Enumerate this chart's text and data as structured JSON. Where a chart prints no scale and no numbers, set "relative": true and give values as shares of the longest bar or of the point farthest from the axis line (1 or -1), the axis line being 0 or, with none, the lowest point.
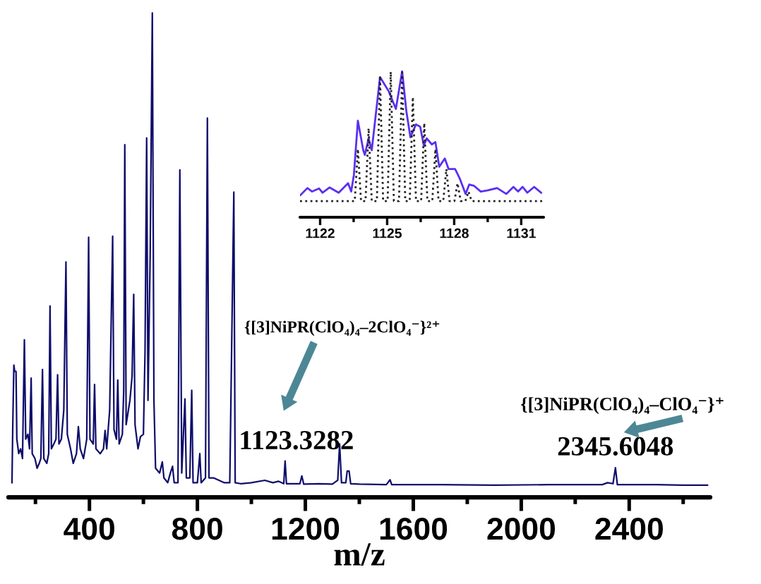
{
  "chart_data": [
    {
      "type": "line",
      "relative": true,
      "color": "#0f0d6b",
      "xlabel": "m/z",
      "xlim": [
        100,
        2700
      ],
      "tick_labels": "x",
      "xticks": [
        {
          "value": 200,
          "label": null
        },
        400,
        {
          "value": 600,
          "label": null
        },
        800,
        {
          "value": 1000,
          "label": null
        },
        1200,
        {
          "value": 1400,
          "label": null
        },
        1600,
        {
          "value": 1800,
          "label": null
        },
        2000,
        {
          "value": 2200,
          "label": null
        },
        2400,
        {
          "value": 2600,
          "label": null
        }
      ],
      "x": [
        113,
        116,
        120,
        123,
        128,
        131,
        138,
        145,
        152,
        159,
        164,
        172,
        178,
        184,
        188,
        198,
        206,
        214,
        220,
        226,
        231,
        242,
        249,
        254,
        259,
        268,
        276,
        282,
        287,
        296,
        305,
        313,
        318,
        330,
        340,
        352,
        359,
        366,
        378,
        390,
        397,
        402,
        414,
        419,
        424,
        440,
        452,
        458,
        464,
        475,
        486,
        491,
        500,
        505,
        510,
        522,
        527,
        531,
        536,
        550,
        558,
        564,
        569,
        580,
        589,
        600,
        606,
        612,
        617,
        625,
        633,
        639,
        645,
        660,
        670,
        676,
        690,
        700,
        708,
        714,
        728,
        735,
        742,
        754,
        759,
        772,
        779,
        784,
        800,
        809,
        814,
        830,
        837,
        843,
        860,
        880,
        900,
        920,
        935,
        940,
        960,
        1000,
        1050,
        1080,
        1100,
        1120,
        1125,
        1130,
        1180,
        1187,
        1194,
        1250,
        1300,
        1320,
        1327,
        1334,
        1350,
        1355,
        1362,
        1368,
        1400,
        1500,
        1514,
        1520,
        1700,
        1900,
        2100,
        2300,
        2320,
        2340,
        2349,
        2356,
        2500,
        2600,
        2690
      ],
      "values": [
        0.03,
        0.15,
        0.273,
        0.26,
        0.26,
        0.12,
        0.09,
        0.1,
        0.08,
        0.325,
        0.12,
        0.13,
        0.1,
        0.246,
        0.09,
        0.08,
        0.06,
        0.07,
        0.08,
        0.264,
        0.08,
        0.07,
        0.09,
        0.395,
        0.1,
        0.11,
        0.12,
        0.253,
        0.11,
        0.12,
        0.18,
        0.486,
        0.13,
        0.1,
        0.07,
        0.09,
        0.146,
        0.1,
        0.08,
        0.12,
        0.537,
        0.12,
        0.11,
        0.233,
        0.1,
        0.09,
        0.1,
        0.138,
        0.1,
        0.18,
        0.539,
        0.14,
        0.12,
        0.242,
        0.11,
        0.13,
        0.22,
        0.728,
        0.15,
        0.2,
        0.25,
        0.419,
        0.15,
        0.1,
        0.125,
        0.13,
        0.3,
        0.742,
        0.2,
        0.5,
        1.0,
        0.2,
        0.06,
        0.05,
        0.073,
        0.04,
        0.03,
        0.05,
        0.064,
        0.03,
        0.03,
        0.676,
        0.05,
        0.203,
        0.04,
        0.04,
        0.221,
        0.03,
        0.03,
        0.09,
        0.03,
        0.04,
        0.783,
        0.04,
        0.04,
        0.035,
        0.03,
        0.03,
        0.63,
        0.03,
        0.028,
        0.03,
        0.035,
        0.03,
        0.033,
        0.028,
        0.075,
        0.028,
        0.028,
        0.044,
        0.027,
        0.028,
        0.027,
        0.035,
        0.11,
        0.03,
        0.03,
        0.054,
        0.054,
        0.028,
        0.027,
        0.026,
        0.036,
        0.026,
        0.026,
        0.025,
        0.026,
        0.026,
        0.03,
        0.028,
        0.061,
        0.026,
        0.026,
        0.025,
        0.025
      ],
      "annotations": [
        {
          "text": "1123.3282",
          "x": 1125,
          "y": 0.075
        },
        "{[3]NiPR(ClO₄)₄–2ClO₄⁻}²⁺",
        {
          "text": "2345.6048",
          "x": 2349,
          "y": 0.061
        },
        "{[3]NiPR(ClO₄)₄–ClO₄⁻}⁺"
      ]
    },
    {
      "type": "line",
      "relative": true,
      "xlim": [
        1121.1,
        1132
      ],
      "tick_labels": "x",
      "xticks": [
        1122,
        {
          "value": 1123.5,
          "label": null
        },
        1125,
        {
          "value": 1126.5,
          "label": null
        },
        1128,
        {
          "value": 1129.5,
          "label": null
        },
        1131
      ],
      "series": [
        {
          "color": "#5b2ff0",
          "line_style": "solid",
          "x": [
            1121.12,
            1121.43,
            1121.64,
            1121.95,
            1122.11,
            1122.42,
            1122.83,
            1123.25,
            1123.39,
            1123.51,
            1123.69,
            1123.93,
            1124.0,
            1124.17,
            1124.31,
            1124.68,
            1125.07,
            1125.39,
            1125.67,
            1125.86,
            1126.04,
            1126.29,
            1126.48,
            1126.64,
            1126.77,
            1127.0,
            1127.16,
            1127.33,
            1127.58,
            1127.75,
            1128.04,
            1128.25,
            1128.51,
            1128.67,
            1128.88,
            1129.19,
            1129.5,
            1129.92,
            1130.33,
            1130.65,
            1130.86,
            1131.06,
            1131.27,
            1131.58,
            1131.89
          ],
          "values": [
            0.152,
            0.2,
            0.176,
            0.197,
            0.168,
            0.204,
            0.168,
            0.233,
            0.176,
            0.289,
            0.661,
            0.459,
            0.427,
            0.54,
            0.459,
            0.96,
            0.863,
            0.742,
            1.0,
            0.726,
            0.548,
            0.636,
            0.62,
            0.491,
            0.54,
            0.499,
            0.515,
            0.346,
            0.402,
            0.33,
            0.33,
            0.265,
            0.16,
            0.224,
            0.216,
            0.176,
            0.184,
            0.2,
            0.16,
            0.208,
            0.176,
            0.208,
            0.168,
            0.208,
            0.168
          ]
        },
        {
          "color": "#222222",
          "line_style": "dotted",
          "x": [
            1121.1,
            1123.55,
            1123.69,
            1123.83,
            1124.03,
            1124.17,
            1124.31,
            1124.54,
            1124.68,
            1124.82,
            1125.02,
            1125.16,
            1125.3,
            1125.53,
            1125.67,
            1125.81,
            1126.01,
            1126.15,
            1126.29,
            1126.52,
            1126.66,
            1126.8,
            1127.02,
            1127.16,
            1127.3,
            1127.51,
            1127.65,
            1127.79,
            1128.01,
            1128.15,
            1128.29,
            1128.5,
            1128.64,
            1128.78,
            1132
          ],
          "values": [
            0.111,
            0.111,
            0.467,
            0.111,
            0.111,
            0.609,
            0.111,
            0.111,
            0.968,
            0.111,
            0.111,
            0.997,
            0.111,
            0.111,
            0.992,
            0.111,
            0.111,
            0.823,
            0.111,
            0.111,
            0.645,
            0.111,
            0.111,
            0.467,
            0.111,
            0.111,
            0.33,
            0.111,
            0.111,
            0.233,
            0.111,
            0.111,
            0.176,
            0.111,
            0.111
          ]
        }
      ]
    }
  ]
}
